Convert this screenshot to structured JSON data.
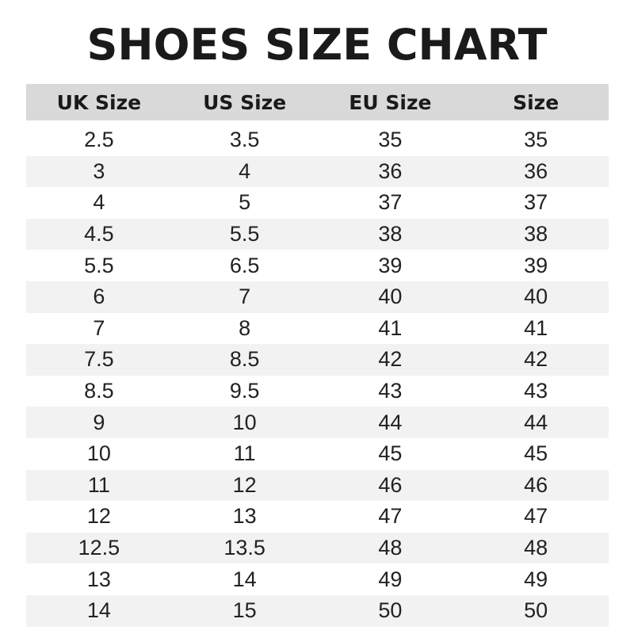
{
  "title": "SHOES SIZE CHART",
  "headers": [
    "UK Size",
    "US Size",
    "EU Size",
    "Size"
  ],
  "rows": [
    [
      "2.5",
      "3.5",
      "35",
      "35"
    ],
    [
      "3",
      "4",
      "36",
      "36"
    ],
    [
      "4",
      "5",
      "37",
      "37"
    ],
    [
      "4.5",
      "5.5",
      "38",
      "38"
    ],
    [
      "5.5",
      "6.5",
      "39",
      "39"
    ],
    [
      "6",
      "7",
      "40",
      "40"
    ],
    [
      "7",
      "8",
      "41",
      "41"
    ],
    [
      "7.5",
      "8.5",
      "42",
      "42"
    ],
    [
      "8.5",
      "9.5",
      "43",
      "43"
    ],
    [
      "9",
      "10",
      "44",
      "44"
    ],
    [
      "10",
      "11",
      "45",
      "45"
    ],
    [
      "11",
      "12",
      "46",
      "46"
    ],
    [
      "12",
      "13",
      "47",
      "47"
    ],
    [
      "12.5",
      "13.5",
      "48",
      "48"
    ],
    [
      "13",
      "14",
      "49",
      "49"
    ],
    [
      "14",
      "15",
      "50",
      "50"
    ]
  ],
  "colors": {
    "header_bg": "#d9d9d9",
    "stripe_bg": "#f2f2f2"
  }
}
